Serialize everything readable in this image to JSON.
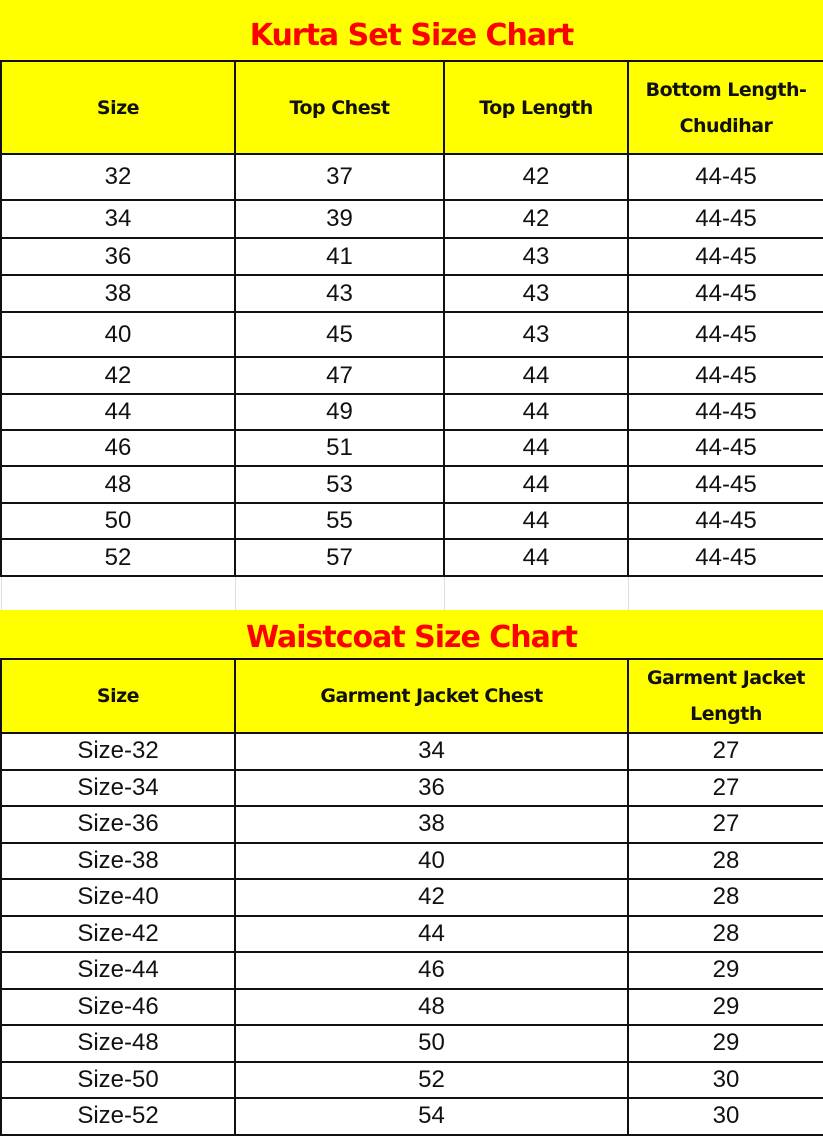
{
  "kurta": {
    "title": "Kurta Set Size Chart",
    "headers": [
      "Size",
      "Top Chest",
      "Top Length",
      "Bottom Length-Chudihar"
    ],
    "rows": [
      [
        "32",
        "37",
        "42",
        "44-45"
      ],
      [
        "34",
        "39",
        "42",
        "44-45"
      ],
      [
        "36",
        "41",
        "43",
        "44-45"
      ],
      [
        "38",
        "43",
        "43",
        "44-45"
      ],
      [
        "40",
        "45",
        "43",
        "44-45"
      ],
      [
        "42",
        "47",
        "44",
        "44-45"
      ],
      [
        "44",
        "49",
        "44",
        "44-45"
      ],
      [
        "46",
        "51",
        "44",
        "44-45"
      ],
      [
        "48",
        "53",
        "44",
        "44-45"
      ],
      [
        "50",
        "55",
        "44",
        "44-45"
      ],
      [
        "52",
        "57",
        "44",
        "44-45"
      ]
    ]
  },
  "waistcoat": {
    "title": "Waistcoat Size Chart",
    "headers": [
      "Size",
      "Garment  Jacket Chest",
      "Garment Jacket Length"
    ],
    "rows": [
      [
        "Size-32",
        "34",
        "27"
      ],
      [
        "Size-34",
        "36",
        "27"
      ],
      [
        "Size-36",
        "38",
        "27"
      ],
      [
        "Size-38",
        "40",
        "28"
      ],
      [
        "Size-40",
        "42",
        "28"
      ],
      [
        "Size-42",
        "44",
        "28"
      ],
      [
        "Size-44",
        "46",
        "29"
      ],
      [
        "Size-46",
        "48",
        "29"
      ],
      [
        "Size-48",
        "50",
        "29"
      ],
      [
        "Size-50",
        "52",
        "30"
      ],
      [
        "Size-52",
        "54",
        "30"
      ]
    ]
  },
  "colors": {
    "header_bg": "#ffff00",
    "title_text": "#ff0000"
  }
}
